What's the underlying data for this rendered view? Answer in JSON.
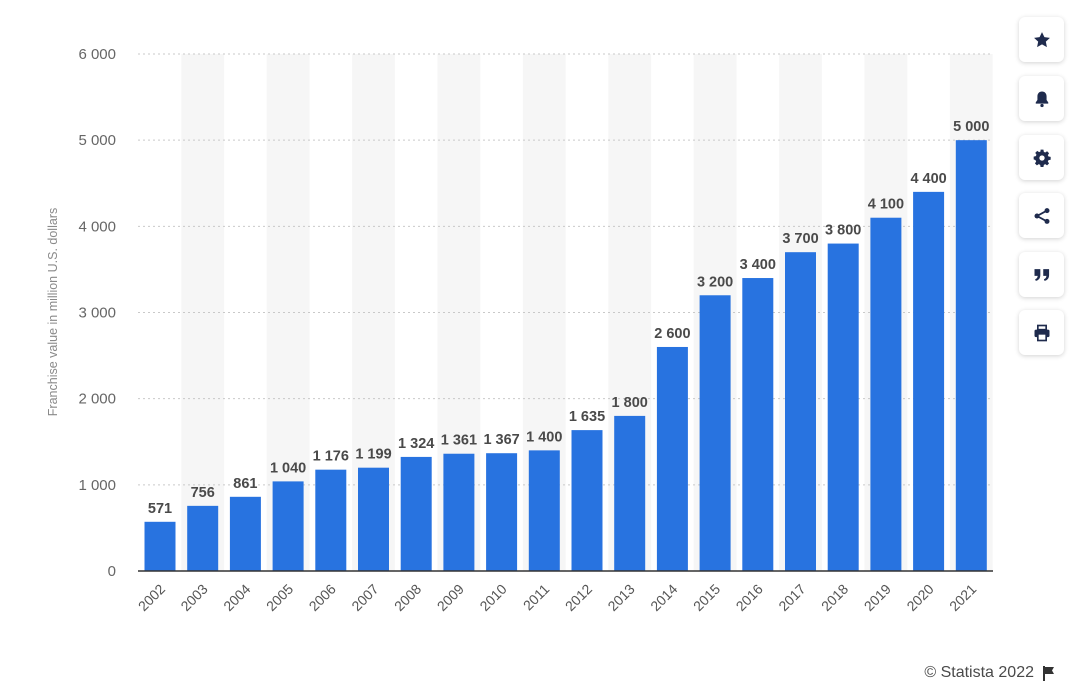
{
  "chart_data": {
    "type": "bar",
    "categories": [
      "2002",
      "2003",
      "2004",
      "2005",
      "2006",
      "2007",
      "2008",
      "2009",
      "2010",
      "2011",
      "2012",
      "2013",
      "2014",
      "2015",
      "2016",
      "2017",
      "2018",
      "2019",
      "2020",
      "2021"
    ],
    "values": [
      571,
      756,
      861,
      1040,
      1176,
      1199,
      1324,
      1361,
      1367,
      1400,
      1635,
      1800,
      2600,
      3200,
      3400,
      3700,
      3800,
      4100,
      4400,
      5000
    ],
    "value_labels": [
      "571",
      "756",
      "861",
      "1 040",
      "1 176",
      "1 199",
      "1 324",
      "1 361",
      "1 367",
      "1 400",
      "1 635",
      "1 800",
      "2 600",
      "3 200",
      "3 400",
      "3 700",
      "3 800",
      "4 100",
      "4 400",
      "5 000"
    ],
    "ylabel": "Franchise value in million U.S. dollars",
    "xlabel": "",
    "ylim": [
      0,
      6000
    ],
    "yticks": [
      0,
      1000,
      2000,
      3000,
      4000,
      5000,
      6000
    ],
    "ytick_labels": [
      "0",
      "1 000",
      "2 000",
      "3 000",
      "4 000",
      "5 000",
      "6 000"
    ],
    "grid": true,
    "bar_color": "#2873e0"
  },
  "toolbar": {
    "buttons": [
      {
        "icon": "star-icon",
        "name": "favorite-button"
      },
      {
        "icon": "bell-icon",
        "name": "notification-button"
      },
      {
        "icon": "gear-icon",
        "name": "settings-button"
      },
      {
        "icon": "share-icon",
        "name": "share-button"
      },
      {
        "icon": "quote-icon",
        "name": "cite-button"
      },
      {
        "icon": "print-icon",
        "name": "print-button"
      }
    ]
  },
  "credit": {
    "text": "© Statista 2022",
    "icon": "flag-icon"
  }
}
